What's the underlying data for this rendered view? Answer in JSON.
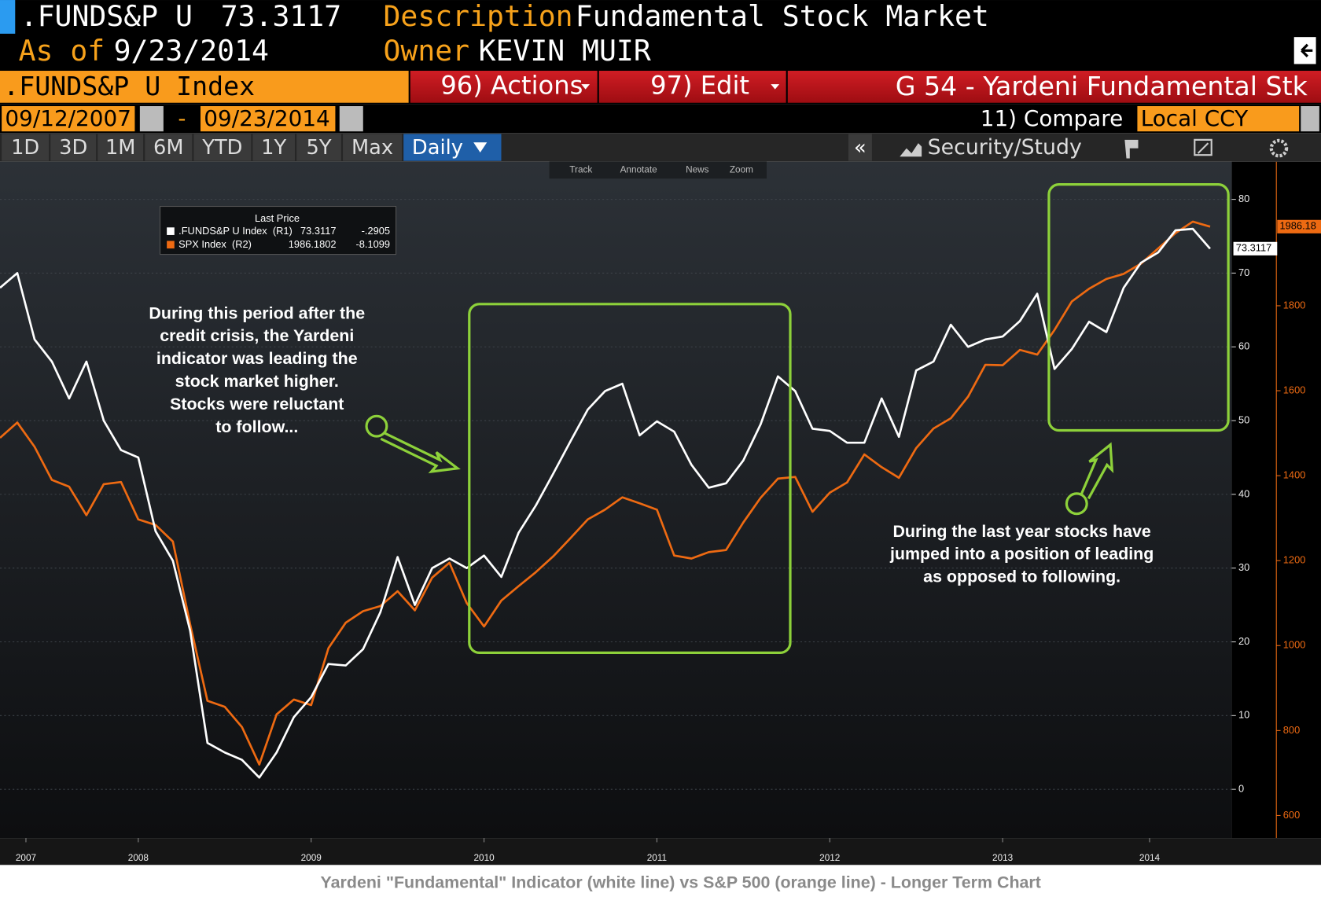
{
  "header": {
    "ticker": ".FUNDS&P U",
    "price": "73.3117",
    "description_label": "Description",
    "description": "Fundamental Stock Market",
    "as_of_label": "As of",
    "as_of": "9/23/2014",
    "owner_label": "Owner",
    "owner": "KEVIN MUIR"
  },
  "toolbar": {
    "security": ".FUNDS&P U Index",
    "actions": "96) Actions",
    "edit": "97) Edit",
    "page_title": "G 54 - Yardeni Fundamental Stk",
    "start_date": "09/12/2007",
    "date_separator": "-",
    "end_date": "09/23/2014",
    "compare": "11) Compare",
    "currency": "Local CCY"
  },
  "tabs": [
    "1D",
    "3D",
    "1M",
    "6M",
    "YTD",
    "1Y",
    "5Y",
    "Max"
  ],
  "frequency": "Daily",
  "collapse": "«",
  "security_study": "Security/Study",
  "chart_tools": [
    "Track",
    "Annotate",
    "News",
    "Zoom"
  ],
  "chart_data": {
    "type": "line",
    "legend_title": "Last Price",
    "x": [
      2007.7,
      2007.8,
      2007.9,
      2008.0,
      2008.1,
      2008.2,
      2008.3,
      2008.4,
      2008.5,
      2008.6,
      2008.7,
      2008.8,
      2008.9,
      2009.0,
      2009.1,
      2009.2,
      2009.3,
      2009.4,
      2009.5,
      2009.6,
      2009.7,
      2009.8,
      2009.9,
      2010.0,
      2010.1,
      2010.2,
      2010.3,
      2010.4,
      2010.5,
      2010.6,
      2010.7,
      2010.8,
      2010.9,
      2011.0,
      2011.1,
      2011.2,
      2011.3,
      2011.4,
      2011.5,
      2011.6,
      2011.7,
      2011.8,
      2011.9,
      2012.0,
      2012.1,
      2012.2,
      2012.3,
      2012.4,
      2012.5,
      2012.6,
      2012.7,
      2012.8,
      2012.9,
      2013.0,
      2013.1,
      2013.2,
      2013.3,
      2013.4,
      2013.5,
      2013.6,
      2013.7,
      2013.8,
      2013.9,
      2014.0,
      2014.1,
      2014.2,
      2014.3,
      2014.4,
      2014.5,
      2014.6,
      2014.7
    ],
    "xlim": [
      2007.7,
      2014.825
    ],
    "xticks": [
      {
        "value": 2007.85,
        "label": "2007"
      },
      {
        "value": 2008.5,
        "label": "2008"
      },
      {
        "value": 2009.5,
        "label": "2009"
      },
      {
        "value": 2010.5,
        "label": "2010"
      },
      {
        "value": 2011.5,
        "label": "2011"
      },
      {
        "value": 2012.5,
        "label": "2012"
      },
      {
        "value": 2013.5,
        "label": "2013"
      },
      {
        "value": 2014.35,
        "label": "2014"
      }
    ],
    "ylim": [
      -6.6,
      85.1
    ],
    "yticks": [
      0,
      10,
      20,
      30,
      40,
      50,
      60,
      70,
      80
    ],
    "y2lim": [
      547,
      2139
    ],
    "y2ticks": [
      600,
      800,
      1000,
      1200,
      1400,
      1600,
      1800
    ],
    "grid": true,
    "series": [
      {
        "name": ".FUNDS&P U Index  (R1)",
        "color": "#ffffff",
        "values": [
          68,
          70,
          61,
          58,
          53,
          58,
          50,
          46,
          45,
          35,
          31,
          21.5,
          6.3,
          5,
          4,
          1.6,
          5,
          9.8,
          12.5,
          17,
          16.8,
          19,
          24,
          31.5,
          25,
          30,
          31.3,
          30,
          31.7,
          28.8,
          34.8,
          38.5,
          42.8,
          47.2,
          51.5,
          54,
          55,
          48,
          49.9,
          48.5,
          44,
          40.9,
          41.5,
          44.6,
          49.5,
          56,
          54,
          48.9,
          48.6,
          47,
          47,
          53,
          47.8,
          56.8,
          58,
          63,
          60,
          61,
          61.4,
          63.5,
          67.2,
          57,
          59.7,
          63.4,
          62,
          68,
          71.4,
          72.8,
          75.8,
          76,
          73.3117
        ]
      },
      {
        "name": "SPX Index  (R2)",
        "color": "#ee6a12",
        "axis": "y2",
        "values": [
          1489,
          1525,
          1468,
          1390,
          1374,
          1307,
          1380,
          1385,
          1297,
          1284,
          1245,
          1050,
          870,
          856,
          808,
          720,
          838,
          873,
          860,
          994,
          1054,
          1081,
          1093,
          1128,
          1083,
          1160,
          1195,
          1100,
          1045,
          1106,
          1140,
          1173,
          1210,
          1253,
          1297,
          1320,
          1349,
          1335,
          1320,
          1212,
          1205,
          1220,
          1225,
          1290,
          1348,
          1393,
          1397,
          1315,
          1360,
          1384,
          1450,
          1420,
          1395,
          1465,
          1511,
          1535,
          1586,
          1661,
          1660,
          1696,
          1685,
          1743,
          1810,
          1840,
          1863,
          1875,
          1899,
          1935,
          1971,
          1998,
          1986.1802
        ]
      }
    ],
    "legend_values": [
      73.3117,
      1986.1802
    ],
    "legend_changes": [
      {
        "value": -0.2905,
        "label": "-.2905"
      },
      {
        "value": -8.1099,
        "label": "-8.1099"
      }
    ],
    "last_tags": [
      73.3117,
      {
        "value": 1986.1802,
        "label": "1986.18"
      }
    ],
    "annotations": [
      {
        "lines": [
          "During this period after the",
          "credit crisis, the Yardeni",
          "indicator was leading the",
          "stock market higher.",
          "Stocks were reluctant",
          "to follow..."
        ]
      },
      {
        "lines": [
          "During the last year stocks have",
          "jumped into a position of leading",
          "as opposed to following."
        ]
      }
    ]
  },
  "caption": "Yardeni \"Fundamental\" Indicator (white line) vs S&P 500 (orange line) - Longer Term Chart"
}
